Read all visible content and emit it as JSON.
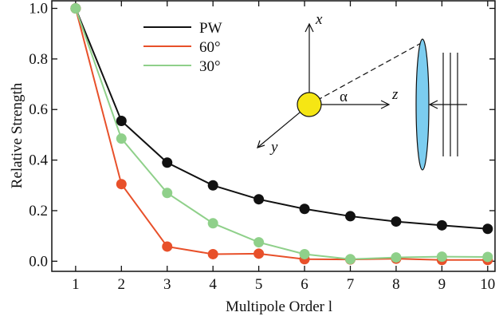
{
  "chart_data": {
    "type": "line",
    "xlabel": "Multipole Order l",
    "ylabel": "Relative Strength",
    "x": [
      1,
      2,
      3,
      4,
      5,
      6,
      7,
      8,
      9,
      10
    ],
    "series": [
      {
        "name": "PW",
        "color": "#111111",
        "values": [
          1.0,
          0.555,
          0.39,
          0.3,
          0.245,
          0.207,
          0.178,
          0.157,
          0.142,
          0.128
        ]
      },
      {
        "name": "60°",
        "color": "#e8502a",
        "values": [
          1.0,
          0.305,
          0.058,
          0.028,
          0.03,
          0.008,
          0.007,
          0.01,
          0.005,
          0.005
        ]
      },
      {
        "name": "30°",
        "color": "#8fd08a",
        "values": [
          1.0,
          0.485,
          0.27,
          0.15,
          0.075,
          0.028,
          0.008,
          0.015,
          0.018,
          0.017
        ]
      }
    ],
    "xlim": [
      0.48,
      10.16
    ],
    "ylim": [
      -0.04,
      1.03
    ],
    "xticks": [
      1,
      2,
      3,
      4,
      5,
      6,
      7,
      8,
      9,
      10
    ],
    "yticks": [
      {
        "value": 0,
        "label": "0.0"
      },
      {
        "value": 0.2,
        "label": "0.2"
      },
      {
        "value": 0.4,
        "label": "0.4"
      },
      {
        "value": 0.6,
        "label": "0.6"
      },
      {
        "value": 0.8,
        "label": "0.8"
      },
      {
        "value": 1,
        "label": "1.0"
      }
    ],
    "legend": "upper-left",
    "annotations": [
      "x",
      "y",
      "z",
      "α"
    ]
  }
}
